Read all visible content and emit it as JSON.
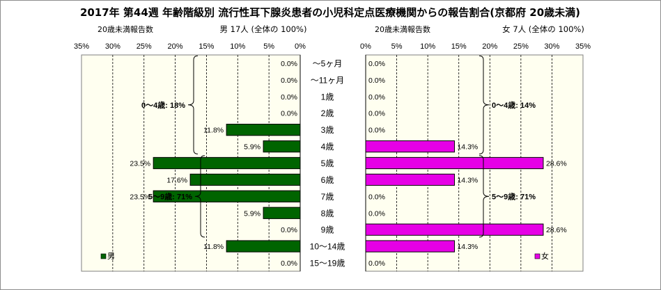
{
  "title": "2017年 第44週 年齢階級別 流行性耳下腺炎患者の小児科定点医療機関からの報告割合(京都府 20歳未満)",
  "left_header": {
    "caption": "20歳未満報告数",
    "summary": "男 17人 (全体の 100%)"
  },
  "right_header": {
    "caption": "20歳未満報告数",
    "summary": "女 7人 (全体の 100%)"
  },
  "colors": {
    "male": "#006400",
    "female": "#e600e6",
    "plot_bg": "#fffff0",
    "grid": "#000000"
  },
  "chart_data": [
    {
      "type": "bar",
      "orientation": "horizontal-mirrored",
      "categories": [
        "～5ヶ月",
        "～11ヶ月",
        "1歳",
        "2歳",
        "3歳",
        "4歳",
        "5歳",
        "6歳",
        "7歳",
        "8歳",
        "9歳",
        "10～14歳",
        "15～19歳"
      ],
      "series": [
        {
          "name": "男",
          "values": [
            0.0,
            0.0,
            0.0,
            0.0,
            11.8,
            5.9,
            23.5,
            17.6,
            23.5,
            5.9,
            0.0,
            11.8,
            0.0
          ]
        }
      ],
      "value_labels": [
        "0.0%",
        "0.0%",
        "0.0%",
        "0.0%",
        "11.8%",
        "5.9%",
        "23.5%",
        "17.6%",
        "23.5%",
        "5.9%",
        "0.0%",
        "11.8%",
        "0.0%"
      ],
      "xlim": [
        0,
        35
      ],
      "ticks": [
        "0%",
        "5%",
        "10%",
        "15%",
        "20%",
        "25%",
        "30%",
        "35%"
      ],
      "grid": true,
      "legend": "bottom-left",
      "annotations": [
        {
          "text": "0～4歳: 18%",
          "from": "～5ヶ月",
          "to": "4歳"
        },
        {
          "text": "5～9歳: 71%",
          "from": "5歳",
          "to": "9歳"
        }
      ]
    },
    {
      "type": "bar",
      "orientation": "horizontal",
      "categories": [
        "～5ヶ月",
        "～11ヶ月",
        "1歳",
        "2歳",
        "3歳",
        "4歳",
        "5歳",
        "6歳",
        "7歳",
        "8歳",
        "9歳",
        "10～14歳",
        "15～19歳"
      ],
      "series": [
        {
          "name": "女",
          "values": [
            0.0,
            0.0,
            0.0,
            0.0,
            0.0,
            14.3,
            28.6,
            14.3,
            0.0,
            0.0,
            28.6,
            14.3,
            0.0
          ]
        }
      ],
      "value_labels": [
        "0.0%",
        "0.0%",
        "0.0%",
        "0.0%",
        "0.0%",
        "14.3%",
        "28.6%",
        "14.3%",
        "0.0%",
        "0.0%",
        "28.6%",
        "14.3%",
        "0.0%"
      ],
      "xlim": [
        0,
        35
      ],
      "ticks": [
        "0%",
        "5%",
        "10%",
        "15%",
        "20%",
        "25%",
        "30%",
        "35%"
      ],
      "grid": true,
      "legend": "bottom-right",
      "annotations": [
        {
          "text": "0～4歳: 14%",
          "from": "～5ヶ月",
          "to": "4歳"
        },
        {
          "text": "5～9歳: 71%",
          "from": "5歳",
          "to": "9歳"
        }
      ]
    }
  ]
}
